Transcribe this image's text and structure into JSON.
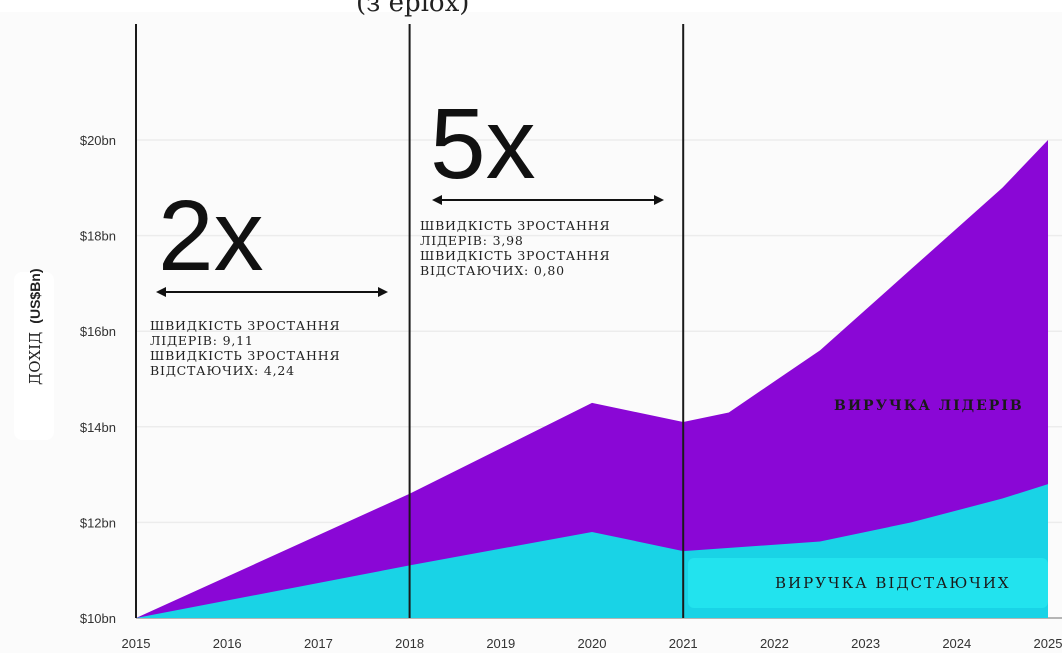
{
  "chart_data": {
    "type": "area",
    "top_fragment": "(з еріох)",
    "ylabel": "ДОХІД",
    "ylabel_unit": "(US$Bn)",
    "xlim": [
      2015,
      2025
    ],
    "ylim": [
      10,
      20
    ],
    "x_ticks": [
      "2015",
      "2016",
      "2017",
      "2018",
      "2019",
      "2020",
      "2021",
      "2022",
      "2023",
      "2024",
      "2025"
    ],
    "y_ticks": [
      {
        "value": 10,
        "label": "$10bn"
      },
      {
        "value": 12,
        "label": "$12bn"
      },
      {
        "value": 14,
        "label": "$14bn"
      },
      {
        "value": 16,
        "label": "$16bn"
      },
      {
        "value": 18,
        "label": "$18bn"
      },
      {
        "value": 20,
        "label": "$20bn"
      }
    ],
    "grid": true,
    "series": [
      {
        "name": "ВИРУЧКА ЛІДЕРІВ",
        "color": "#8a07d6",
        "x": [
          2015,
          2018,
          2020,
          2021,
          2021.5,
          2022.5,
          2023.5,
          2024.5,
          2025
        ],
        "values": [
          10.0,
          12.6,
          14.5,
          14.1,
          14.3,
          15.6,
          17.3,
          19.0,
          20.0
        ]
      },
      {
        "name": "ВИРУЧКА ВІДСТАЮЧИХ",
        "color": "#19d3e6",
        "x": [
          2015,
          2018,
          2020,
          2021,
          2022.5,
          2023.5,
          2024.5,
          2025
        ],
        "values": [
          10.0,
          11.1,
          11.8,
          11.4,
          11.6,
          12.0,
          12.5,
          12.8
        ]
      }
    ],
    "dividers": [
      2015,
      2018,
      2021
    ],
    "periods": [
      {
        "multiplier": "2x",
        "from": 2015,
        "to": 2018,
        "lines": [
          "ШВИДКІСТЬ ЗРОСТАННЯ",
          "ЛІДЕРІВ: 9,11",
          "ШВИДКІСТЬ ЗРОСТАННЯ",
          "ВІДСТАЮЧИХ: 4,24"
        ]
      },
      {
        "multiplier": "5x",
        "from": 2018,
        "to": 2021,
        "lines": [
          "ШВИДКІСТЬ ЗРОСТАННЯ",
          "ЛІДЕРІВ: 3,98",
          "ШВИДКІСТЬ ЗРОСТАННЯ",
          "ВІДСТАЮЧИХ: 0,80"
        ]
      }
    ]
  }
}
